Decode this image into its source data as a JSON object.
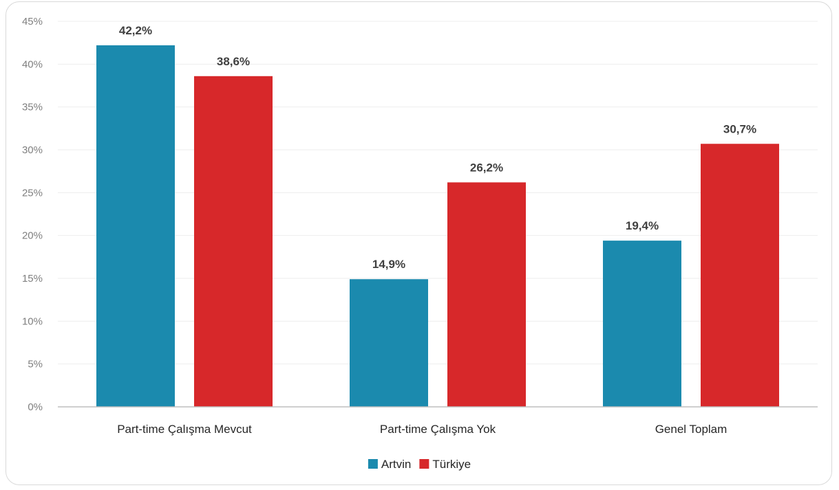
{
  "chart_data": {
    "type": "bar",
    "categories": [
      "Part-time Çalışma Mevcut",
      "Part-time Çalışma Yok",
      "Genel Toplam"
    ],
    "series": [
      {
        "name": "Artvin",
        "values": [
          42.2,
          14.9,
          19.4
        ],
        "labels": [
          "42,2%",
          "14,9%",
          "19,4%"
        ],
        "color": "#1b8aae"
      },
      {
        "name": "Türkiye",
        "values": [
          38.6,
          26.2,
          30.7
        ],
        "labels": [
          "38,6%",
          "26,2%",
          "30,7%"
        ],
        "color": "#d7282a"
      }
    ],
    "ylim": [
      0,
      45
    ],
    "yticks": [
      0,
      5,
      10,
      15,
      20,
      25,
      30,
      35,
      40,
      45
    ],
    "ytick_labels": [
      "0%",
      "5%",
      "10%",
      "15%",
      "20%",
      "25%",
      "30%",
      "35%",
      "40%",
      "45%"
    ],
    "grid": true,
    "legend_position": "bottom"
  }
}
